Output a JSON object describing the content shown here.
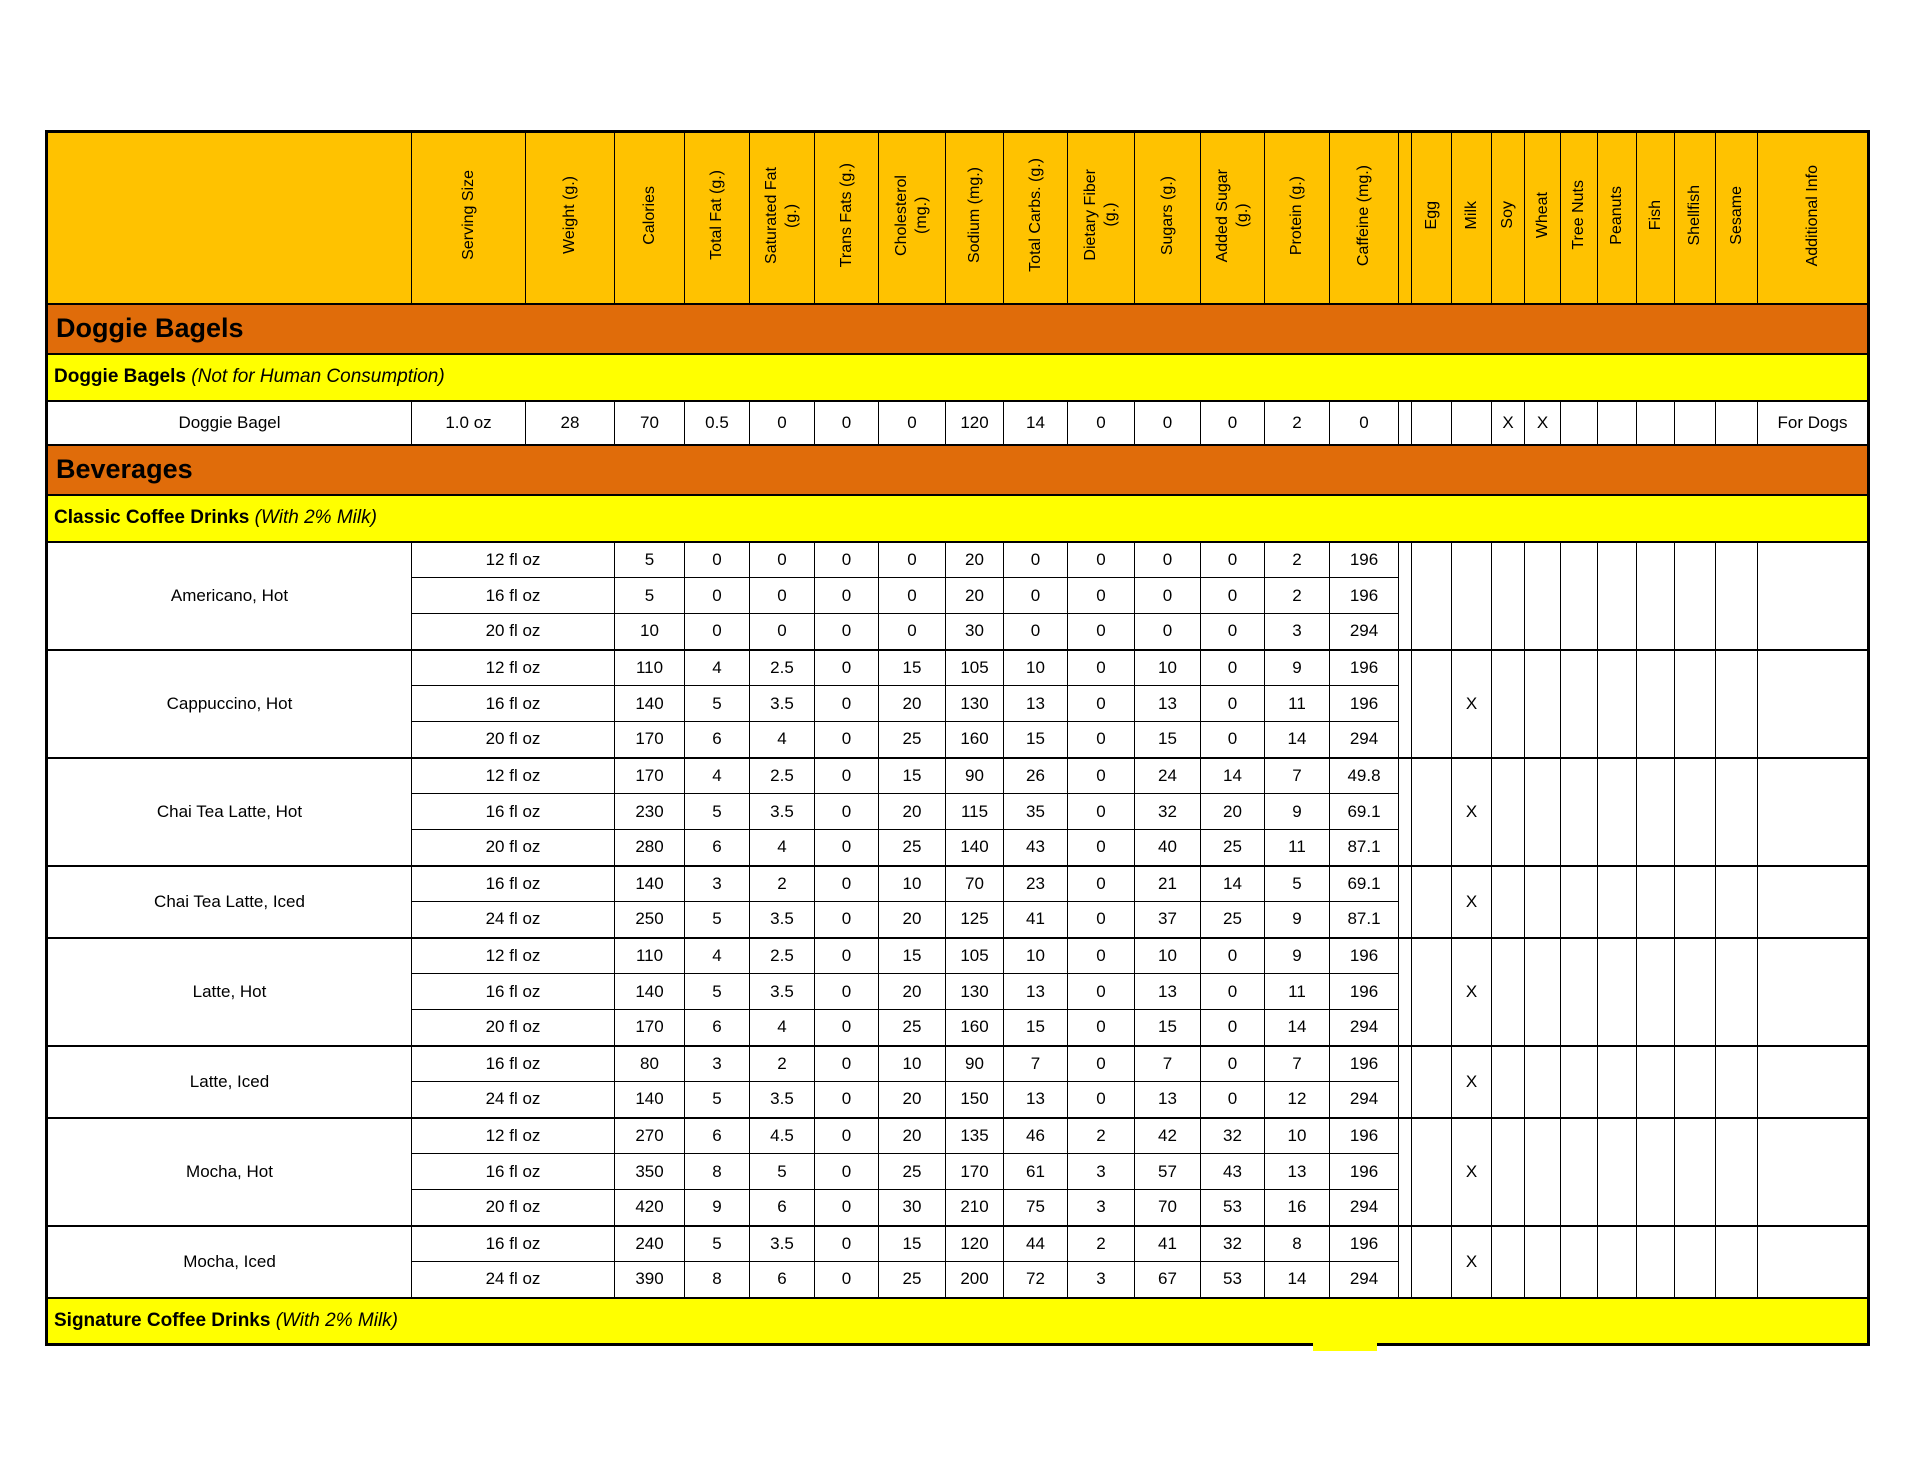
{
  "colors": {
    "header_bg": "#FFC200",
    "section_bg": "#E06C0A",
    "subsection_bg": "#FFFF00",
    "row_bg": "#FFFFFF",
    "border": "#000000"
  },
  "header": {
    "nutrient_columns": [
      "Serving Size",
      "Weight (g.)",
      "Calories",
      "Total Fat (g.)",
      "Saturated Fat\n(g.)",
      "Trans Fats (g.)",
      "Cholesterol\n(mg.)",
      "Sodium (mg.)",
      "Total Carbs. (g.)",
      "Dietary Fiber\n(g.)",
      "Sugars (g.)",
      "Added Sugar\n(g.)",
      "Protein (g.)",
      "Caffeine (mg.)"
    ],
    "allergen_columns": [
      "Egg",
      "Milk",
      "Soy",
      "Wheat",
      "Tree Nuts",
      "Peanuts",
      "Fish",
      "Shellfish",
      "Sesame"
    ],
    "additional_info_column": "Additional Info"
  },
  "sections": [
    {
      "title": "Doggie Bagels",
      "groups": [
        {
          "title": "Doggie Bagels",
          "note": "(Not for Human Consumption)",
          "items": [
            {
              "name": "Doggie Bagel",
              "rows": [
                {
                  "serving": "1.0 oz",
                  "values": [
                    "28",
                    "70",
                    "0.5",
                    "0",
                    "0",
                    "0",
                    "120",
                    "14",
                    "0",
                    "0",
                    "0",
                    "2",
                    "0"
                  ]
                }
              ],
              "allergens": {
                "Soy": "X",
                "Wheat": "X"
              },
              "additional_info": "For Dogs"
            }
          ]
        }
      ]
    },
    {
      "title": "Beverages",
      "groups": [
        {
          "title": "Classic Coffee Drinks",
          "note": "(With 2% Milk)",
          "items": [
            {
              "name": "Americano, Hot",
              "rows": [
                {
                  "serving": "12 fl oz",
                  "values": [
                    "5",
                    "0",
                    "0",
                    "0",
                    "0",
                    "20",
                    "0",
                    "0",
                    "0",
                    "0",
                    "2",
                    "196"
                  ]
                },
                {
                  "serving": "16 fl oz",
                  "values": [
                    "5",
                    "0",
                    "0",
                    "0",
                    "0",
                    "20",
                    "0",
                    "0",
                    "0",
                    "0",
                    "2",
                    "196"
                  ]
                },
                {
                  "serving": "20 fl oz",
                  "values": [
                    "10",
                    "0",
                    "0",
                    "0",
                    "0",
                    "30",
                    "0",
                    "0",
                    "0",
                    "0",
                    "3",
                    "294"
                  ]
                }
              ],
              "allergens": {},
              "additional_info": ""
            },
            {
              "name": "Cappuccino, Hot",
              "rows": [
                {
                  "serving": "12 fl oz",
                  "values": [
                    "110",
                    "4",
                    "2.5",
                    "0",
                    "15",
                    "105",
                    "10",
                    "0",
                    "10",
                    "0",
                    "9",
                    "196"
                  ]
                },
                {
                  "serving": "16 fl oz",
                  "values": [
                    "140",
                    "5",
                    "3.5",
                    "0",
                    "20",
                    "130",
                    "13",
                    "0",
                    "13",
                    "0",
                    "11",
                    "196"
                  ]
                },
                {
                  "serving": "20 fl oz",
                  "values": [
                    "170",
                    "6",
                    "4",
                    "0",
                    "25",
                    "160",
                    "15",
                    "0",
                    "15",
                    "0",
                    "14",
                    "294"
                  ]
                }
              ],
              "allergens": {
                "Milk": "X"
              },
              "additional_info": ""
            },
            {
              "name": "Chai Tea Latte, Hot",
              "rows": [
                {
                  "serving": "12 fl oz",
                  "values": [
                    "170",
                    "4",
                    "2.5",
                    "0",
                    "15",
                    "90",
                    "26",
                    "0",
                    "24",
                    "14",
                    "7",
                    "49.8"
                  ]
                },
                {
                  "serving": "16 fl oz",
                  "values": [
                    "230",
                    "5",
                    "3.5",
                    "0",
                    "20",
                    "115",
                    "35",
                    "0",
                    "32",
                    "20",
                    "9",
                    "69.1"
                  ]
                },
                {
                  "serving": "20 fl oz",
                  "values": [
                    "280",
                    "6",
                    "4",
                    "0",
                    "25",
                    "140",
                    "43",
                    "0",
                    "40",
                    "25",
                    "11",
                    "87.1"
                  ]
                }
              ],
              "allergens": {
                "Milk": "X"
              },
              "additional_info": ""
            },
            {
              "name": "Chai Tea Latte, Iced",
              "rows": [
                {
                  "serving": "16 fl oz",
                  "values": [
                    "140",
                    "3",
                    "2",
                    "0",
                    "10",
                    "70",
                    "23",
                    "0",
                    "21",
                    "14",
                    "5",
                    "69.1"
                  ]
                },
                {
                  "serving": "24 fl oz",
                  "values": [
                    "250",
                    "5",
                    "3.5",
                    "0",
                    "20",
                    "125",
                    "41",
                    "0",
                    "37",
                    "25",
                    "9",
                    "87.1"
                  ]
                }
              ],
              "allergens": {
                "Milk": "X"
              },
              "additional_info": ""
            },
            {
              "name": "Latte, Hot",
              "rows": [
                {
                  "serving": "12 fl oz",
                  "values": [
                    "110",
                    "4",
                    "2.5",
                    "0",
                    "15",
                    "105",
                    "10",
                    "0",
                    "10",
                    "0",
                    "9",
                    "196"
                  ]
                },
                {
                  "serving": "16 fl oz",
                  "values": [
                    "140",
                    "5",
                    "3.5",
                    "0",
                    "20",
                    "130",
                    "13",
                    "0",
                    "13",
                    "0",
                    "11",
                    "196"
                  ]
                },
                {
                  "serving": "20 fl oz",
                  "values": [
                    "170",
                    "6",
                    "4",
                    "0",
                    "25",
                    "160",
                    "15",
                    "0",
                    "15",
                    "0",
                    "14",
                    "294"
                  ]
                }
              ],
              "allergens": {
                "Milk": "X"
              },
              "additional_info": ""
            },
            {
              "name": "Latte, Iced",
              "rows": [
                {
                  "serving": "16 fl oz",
                  "values": [
                    "80",
                    "3",
                    "2",
                    "0",
                    "10",
                    "90",
                    "7",
                    "0",
                    "7",
                    "0",
                    "7",
                    "196"
                  ]
                },
                {
                  "serving": "24 fl oz",
                  "values": [
                    "140",
                    "5",
                    "3.5",
                    "0",
                    "20",
                    "150",
                    "13",
                    "0",
                    "13",
                    "0",
                    "12",
                    "294"
                  ]
                }
              ],
              "allergens": {
                "Milk": "X"
              },
              "additional_info": ""
            },
            {
              "name": "Mocha, Hot",
              "rows": [
                {
                  "serving": "12 fl oz",
                  "values": [
                    "270",
                    "6",
                    "4.5",
                    "0",
                    "20",
                    "135",
                    "46",
                    "2",
                    "42",
                    "32",
                    "10",
                    "196"
                  ]
                },
                {
                  "serving": "16 fl oz",
                  "values": [
                    "350",
                    "8",
                    "5",
                    "0",
                    "25",
                    "170",
                    "61",
                    "3",
                    "57",
                    "43",
                    "13",
                    "196"
                  ]
                },
                {
                  "serving": "20 fl oz",
                  "values": [
                    "420",
                    "9",
                    "6",
                    "0",
                    "30",
                    "210",
                    "75",
                    "3",
                    "70",
                    "53",
                    "16",
                    "294"
                  ]
                }
              ],
              "allergens": {
                "Milk": "X"
              },
              "additional_info": ""
            },
            {
              "name": "Mocha, Iced",
              "rows": [
                {
                  "serving": "16 fl oz",
                  "values": [
                    "240",
                    "5",
                    "3.5",
                    "0",
                    "15",
                    "120",
                    "44",
                    "2",
                    "41",
                    "32",
                    "8",
                    "196"
                  ]
                },
                {
                  "serving": "24 fl oz",
                  "values": [
                    "390",
                    "8",
                    "6",
                    "0",
                    "25",
                    "200",
                    "72",
                    "3",
                    "67",
                    "53",
                    "14",
                    "294"
                  ]
                }
              ],
              "allergens": {
                "Milk": "X"
              },
              "additional_info": ""
            }
          ]
        },
        {
          "title": "Signature Coffee Drinks",
          "note": "(With 2% Milk)",
          "items": []
        }
      ]
    }
  ]
}
